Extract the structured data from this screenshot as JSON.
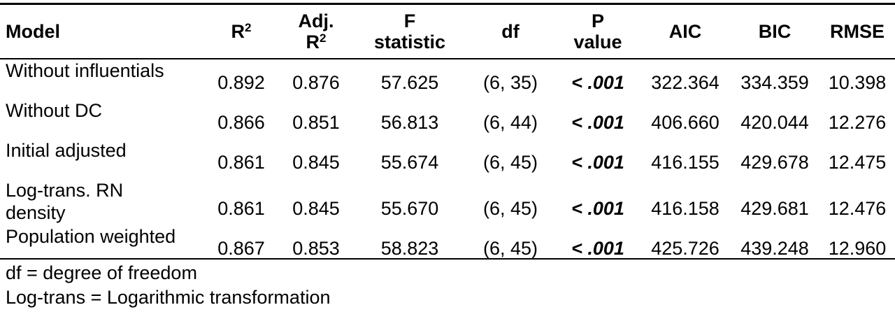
{
  "headers": {
    "model": "Model",
    "r2": "R",
    "r2_sup": "2",
    "adj_r2_line1": "Adj.",
    "adj_r2_line2": "R",
    "adj_r2_sup": "2",
    "f_line1": "F",
    "f_line2": "statistic",
    "df": "df",
    "p_line1": "P",
    "p_line2": "value",
    "aic": "AIC",
    "bic": "BIC",
    "rmse": "RMSE"
  },
  "rows": [
    {
      "model": "Without influentials",
      "r2": "0.892",
      "adj_r2": "0.876",
      "f": "57.625",
      "df": "(6, 35)",
      "p": "< .001",
      "aic": "322.364",
      "bic": "334.359",
      "rmse": "10.398"
    },
    {
      "model": "Without DC",
      "r2": "0.866",
      "adj_r2": "0.851",
      "f": "56.813",
      "df": "(6, 44)",
      "p": "< .001",
      "aic": "406.660",
      "bic": "420.044",
      "rmse": "12.276"
    },
    {
      "model": "Initial adjusted",
      "r2": "0.861",
      "adj_r2": "0.845",
      "f": "55.674",
      "df": "(6, 45)",
      "p": "< .001",
      "aic": "416.155",
      "bic": "429.678",
      "rmse": "12.475"
    },
    {
      "model_line1": "Log-trans. RN",
      "model_line2": "density",
      "r2": "0.861",
      "adj_r2": "0.845",
      "f": "55.670",
      "df": "(6, 45)",
      "p": "< .001",
      "aic": "416.158",
      "bic": "429.681",
      "rmse": "12.476"
    },
    {
      "model": "Population weighted",
      "r2": "0.867",
      "adj_r2": "0.853",
      "f": "58.823",
      "df": "(6, 45)",
      "p": "< .001",
      "aic": "425.726",
      "bic": "439.248",
      "rmse": "12.960"
    }
  ],
  "notes": [
    "df = degree of freedom",
    "Log-trans = Logarithmic transformation"
  ]
}
